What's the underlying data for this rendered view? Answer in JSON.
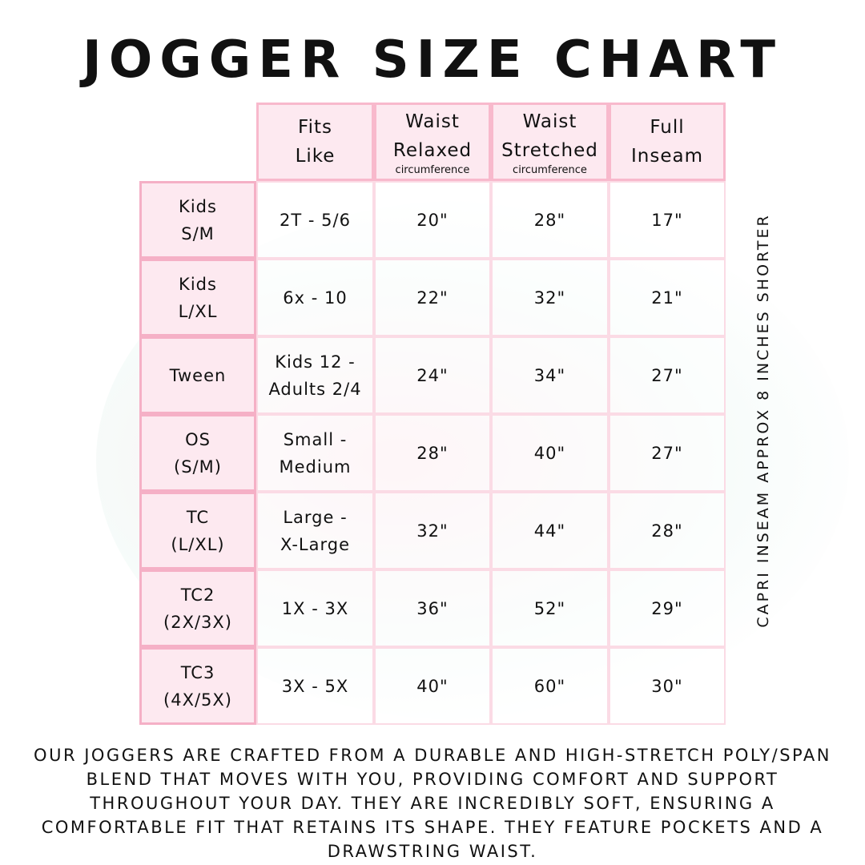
{
  "title": "JOGGER SIZE CHART",
  "headers": [
    {
      "label": "Fits Like",
      "sub": ""
    },
    {
      "label": "Waist Relaxed",
      "sub": "circumference"
    },
    {
      "label": "Waist Stretched",
      "sub": "circumference"
    },
    {
      "label": "Full Inseam",
      "sub": ""
    }
  ],
  "rows": [
    {
      "size": "Kids S/M",
      "fits": "2T - 5/6",
      "relaxed": "20\"",
      "stretched": "28\"",
      "inseam": "17\""
    },
    {
      "size": "Kids L/XL",
      "fits": "6x - 10",
      "relaxed": "22\"",
      "stretched": "32\"",
      "inseam": "21\""
    },
    {
      "size": "Tween",
      "fits": "Kids 12 - Adults 2/4",
      "relaxed": "24\"",
      "stretched": "34\"",
      "inseam": "27\""
    },
    {
      "size": "OS (S/M)",
      "fits": "Small - Medium",
      "relaxed": "28\"",
      "stretched": "40\"",
      "inseam": "27\""
    },
    {
      "size": "TC (L/XL)",
      "fits": "Large - X-Large",
      "relaxed": "32\"",
      "stretched": "44\"",
      "inseam": "28\""
    },
    {
      "size": "TC2 (2X/3X)",
      "fits": "1X - 3X",
      "relaxed": "36\"",
      "stretched": "52\"",
      "inseam": "29\""
    },
    {
      "size": "TC3 (4X/5X)",
      "fits": "3X - 5X",
      "relaxed": "40\"",
      "stretched": "60\"",
      "inseam": "30\""
    }
  ],
  "side_note": "CAPRI INSEAM APPROX 8 INCHES SHORTER",
  "description": "Our joggers are crafted from a durable and high-stretch poly/span blend that moves with you, providing comfort and support throughout your day. They are incredibly soft, ensuring a comfortable fit that retains its shape. They feature pockets and a drawstring waist.",
  "colors": {
    "header_fill": "#fde8ef",
    "border": "#f5b0c6"
  }
}
